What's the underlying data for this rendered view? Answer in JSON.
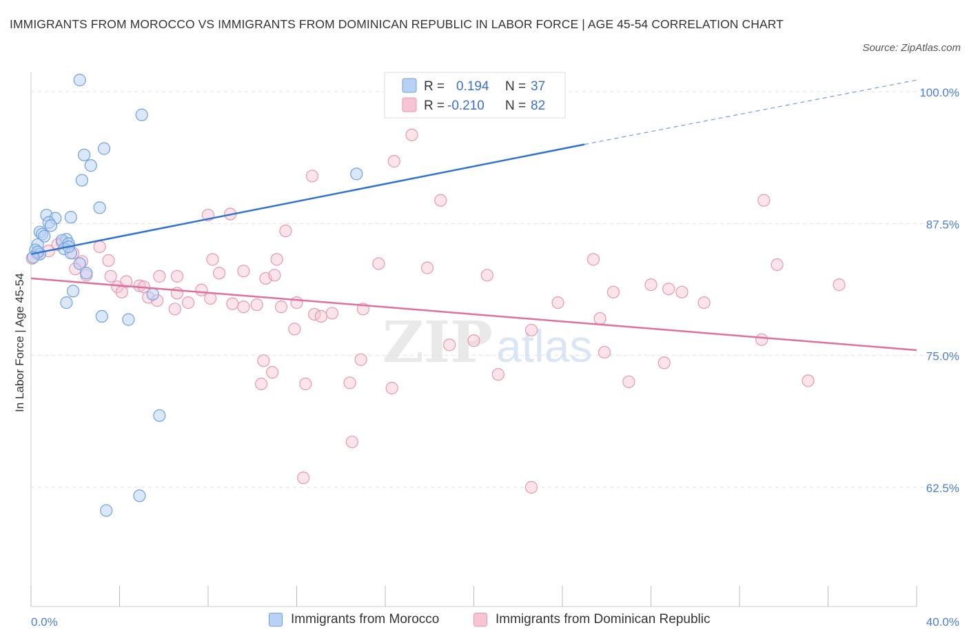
{
  "title": "IMMIGRANTS FROM MOROCCO VS IMMIGRANTS FROM DOMINICAN REPUBLIC IN LABOR FORCE | AGE 45-54 CORRELATION CHART",
  "source": "Source: ZipAtlas.com",
  "colors": {
    "morocco_fill": "#b8d2f5",
    "morocco_stroke": "#6f9fe0",
    "morocco_line": "#2f72d2",
    "dominican_fill": "#f8c4d3",
    "dominican_stroke": "#e897b0",
    "dominican_line": "#e0709a",
    "grid": "#e2e2e2",
    "axis_text": "#4a7fd0"
  },
  "stats": [
    {
      "r_label": "R =",
      "r_value": "0.194",
      "n_label": "N =",
      "n_value": "37"
    },
    {
      "r_label": "R =",
      "r_value": "-0.210",
      "n_label": "N =",
      "n_value": "82"
    }
  ],
  "watermark": {
    "part1": "ZIP",
    "part2": "atlas"
  },
  "chart_data": {
    "type": "scatter",
    "xlabel": "",
    "ylabel": "In Labor Force | Age 45-54",
    "xlim": [
      0,
      40
    ],
    "ylim": [
      50,
      100
    ],
    "x_tick_labels": [
      "0.0%",
      "40.0%"
    ],
    "y_ticks": [
      62.5,
      75.0,
      87.5,
      100.0
    ],
    "y_tick_labels": [
      "62.5%",
      "75.0%",
      "87.5%",
      "100.0%"
    ],
    "series": [
      {
        "name": "Immigrants from Morocco",
        "points": [
          [
            2.2,
            101.1
          ],
          [
            5.0,
            97.8
          ],
          [
            3.3,
            94.6
          ],
          [
            2.4,
            94.0
          ],
          [
            2.7,
            93.0
          ],
          [
            2.3,
            91.6
          ],
          [
            14.7,
            92.2
          ],
          [
            3.1,
            89.0
          ],
          [
            0.7,
            88.3
          ],
          [
            1.1,
            88.0
          ],
          [
            1.8,
            88.1
          ],
          [
            0.8,
            87.6
          ],
          [
            0.9,
            87.3
          ],
          [
            0.4,
            86.7
          ],
          [
            0.5,
            86.5
          ],
          [
            0.6,
            86.3
          ],
          [
            1.6,
            86.0
          ],
          [
            1.4,
            85.9
          ],
          [
            1.7,
            85.6
          ],
          [
            0.3,
            85.5
          ],
          [
            0.2,
            85.0
          ],
          [
            1.5,
            85.1
          ],
          [
            0.4,
            84.6
          ],
          [
            1.8,
            84.7
          ],
          [
            2.2,
            83.7
          ],
          [
            2.5,
            82.8
          ],
          [
            1.9,
            81.1
          ],
          [
            5.5,
            80.8
          ],
          [
            1.6,
            80.0
          ],
          [
            3.2,
            78.7
          ],
          [
            4.4,
            78.4
          ],
          [
            5.8,
            69.3
          ],
          [
            4.9,
            61.7
          ],
          [
            3.4,
            60.3
          ],
          [
            0.3,
            84.8
          ],
          [
            0.1,
            84.3
          ],
          [
            1.7,
            85.3
          ]
        ]
      },
      {
        "name": "Immigrants from Dominican Republic",
        "points": [
          [
            0.05,
            84.2
          ],
          [
            0.3,
            84.6
          ],
          [
            0.8,
            84.9
          ],
          [
            1.4,
            85.7
          ],
          [
            1.2,
            85.5
          ],
          [
            1.9,
            84.7
          ],
          [
            2.3,
            83.9
          ],
          [
            3.1,
            85.3
          ],
          [
            2.0,
            83.2
          ],
          [
            2.5,
            82.6
          ],
          [
            3.6,
            82.5
          ],
          [
            3.5,
            84.0
          ],
          [
            4.3,
            82.0
          ],
          [
            4.9,
            81.6
          ],
          [
            5.1,
            81.5
          ],
          [
            5.8,
            82.5
          ],
          [
            6.6,
            82.5
          ],
          [
            3.9,
            81.5
          ],
          [
            4.1,
            81.0
          ],
          [
            5.3,
            80.5
          ],
          [
            5.7,
            80.2
          ],
          [
            6.6,
            80.9
          ],
          [
            7.1,
            80.0
          ],
          [
            7.7,
            81.2
          ],
          [
            8.2,
            84.1
          ],
          [
            8.5,
            82.8
          ],
          [
            8.0,
            88.3
          ],
          [
            9.0,
            88.4
          ],
          [
            9.1,
            79.9
          ],
          [
            9.6,
            83.0
          ],
          [
            9.6,
            79.6
          ],
          [
            10.2,
            79.8
          ],
          [
            10.6,
            82.3
          ],
          [
            11.0,
            82.6
          ],
          [
            11.1,
            84.1
          ],
          [
            11.5,
            86.8
          ],
          [
            11.3,
            79.6
          ],
          [
            12.0,
            80.0
          ],
          [
            12.8,
            78.9
          ],
          [
            13.1,
            78.7
          ],
          [
            13.6,
            79.0
          ],
          [
            11.9,
            77.5
          ],
          [
            10.5,
            74.5
          ],
          [
            10.9,
            73.4
          ],
          [
            10.4,
            72.3
          ],
          [
            12.4,
            72.3
          ],
          [
            14.4,
            72.4
          ],
          [
            15.0,
            79.4
          ],
          [
            14.9,
            74.6
          ],
          [
            15.7,
            83.7
          ],
          [
            16.4,
            93.4
          ],
          [
            17.2,
            95.9
          ],
          [
            12.7,
            92.0
          ],
          [
            18.5,
            89.7
          ],
          [
            17.9,
            83.3
          ],
          [
            16.3,
            71.9
          ],
          [
            14.5,
            66.8
          ],
          [
            20.0,
            76.4
          ],
          [
            20.6,
            82.6
          ],
          [
            21.1,
            73.2
          ],
          [
            22.6,
            77.4
          ],
          [
            22.6,
            62.5
          ],
          [
            18.9,
            76.0
          ],
          [
            23.8,
            80.0
          ],
          [
            25.4,
            84.1
          ],
          [
            25.7,
            78.5
          ],
          [
            25.9,
            75.3
          ],
          [
            26.3,
            81.0
          ],
          [
            27.0,
            72.5
          ],
          [
            28.0,
            81.7
          ],
          [
            28.6,
            74.3
          ],
          [
            28.8,
            81.3
          ],
          [
            29.4,
            81.0
          ],
          [
            30.4,
            80.0
          ],
          [
            33.1,
            89.7
          ],
          [
            33.7,
            83.6
          ],
          [
            33.0,
            76.5
          ],
          [
            35.1,
            72.6
          ],
          [
            36.5,
            81.7
          ],
          [
            12.3,
            63.4
          ],
          [
            8.1,
            80.4
          ],
          [
            6.5,
            79.4
          ]
        ]
      }
    ],
    "trend_lines": [
      {
        "series": "Immigrants from Morocco",
        "x": [
          0,
          25
        ],
        "y": [
          84.6,
          95.0
        ],
        "extended_dashed_to": [
          40,
          101.1
        ]
      },
      {
        "series": "Immigrants from Dominican Republic",
        "x": [
          0,
          40
        ],
        "y": [
          82.3,
          75.5
        ]
      }
    ]
  }
}
